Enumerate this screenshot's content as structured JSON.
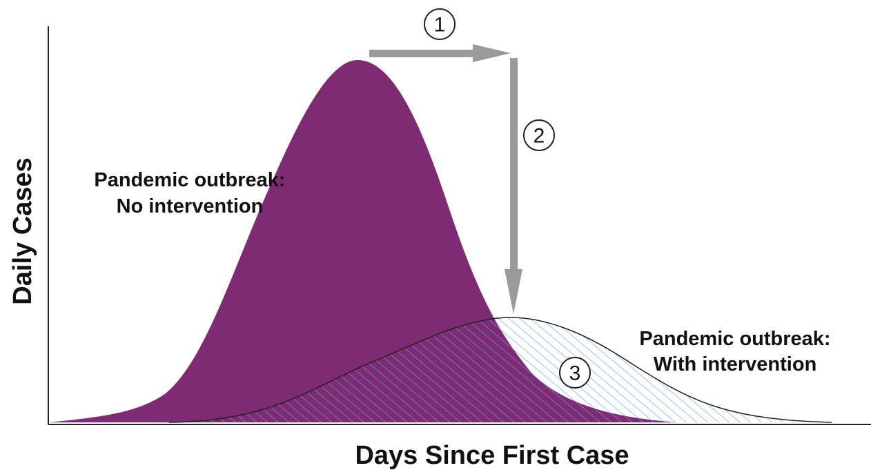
{
  "x_axis_label": "Days Since First Case",
  "y_axis_label": "Daily Cases",
  "curves": [
    {
      "label_lines": [
        "Pandemic outbreak:",
        "No intervention"
      ]
    },
    {
      "label_lines": [
        "Pandemic outbreak:",
        "With intervention"
      ]
    }
  ],
  "steps": [
    "1",
    "2",
    "3"
  ]
}
